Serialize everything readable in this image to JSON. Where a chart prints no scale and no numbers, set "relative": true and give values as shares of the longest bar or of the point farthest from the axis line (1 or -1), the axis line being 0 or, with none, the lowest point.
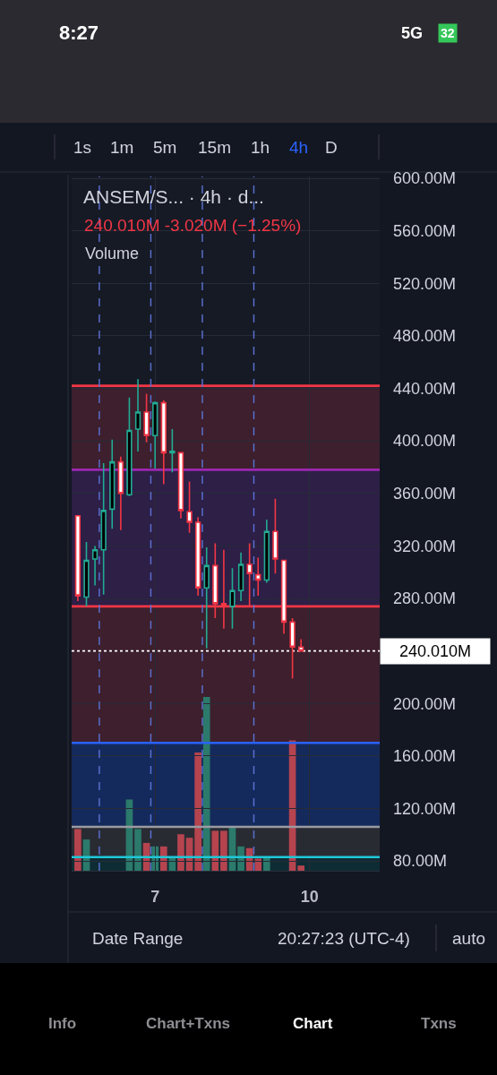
{
  "chart_data": [
    {
      "type": "candlestick",
      "title": "ANSEM/S... · 4h · d...",
      "subtitle": "240.010M -3.020M (−1.25%)",
      "x": [
        5.5,
        5.6667,
        5.8333,
        6,
        6.1667,
        6.3333,
        6.5,
        6.6667,
        6.8333,
        7,
        7.1667,
        7.3333,
        7.5,
        7.6667,
        7.8333,
        8,
        8.1667,
        8.3333,
        8.5,
        8.6667,
        8.8333,
        9,
        9.1667,
        9.3333,
        9.5,
        9.6667,
        9.8333
      ],
      "ohlc": [
        [
          343,
          343,
          278,
          282
        ],
        [
          281,
          323,
          274,
          309
        ],
        [
          310,
          320,
          290,
          317
        ],
        [
          317,
          383,
          283,
          347
        ],
        [
          348,
          401,
          333,
          384
        ],
        [
          384,
          388,
          332,
          360
        ],
        [
          359,
          433,
          358,
          408
        ],
        [
          409,
          447,
          392,
          422
        ],
        [
          422,
          436,
          399,
          404
        ],
        [
          404,
          430,
          379,
          429
        ],
        [
          429,
          431,
          367,
          391
        ],
        [
          391,
          409,
          376,
          392
        ],
        [
          391,
          391,
          341,
          347
        ],
        [
          346,
          369,
          330,
          338
        ],
        [
          338,
          342,
          282,
          288
        ],
        [
          288,
          319,
          242,
          305
        ],
        [
          305,
          322,
          265,
          276
        ],
        [
          276,
          317,
          257,
          275
        ],
        [
          274,
          303,
          257,
          286
        ],
        [
          286,
          315,
          278,
          306
        ],
        [
          306,
          322,
          274,
          299
        ],
        [
          298,
          311,
          282,
          294
        ],
        [
          294,
          340,
          292,
          331
        ],
        [
          331,
          356,
          299,
          310
        ],
        [
          309,
          309,
          253,
          262
        ],
        [
          262,
          265,
          219,
          243.03
        ],
        [
          243.03,
          249,
          240.01,
          240.01
        ]
      ],
      "xlim": [
        5.38,
        11.36
      ],
      "xticks": [
        7,
        10
      ],
      "ylim": [
        72.6,
        601.4
      ],
      "yticks": [
        {
          "value": 80,
          "label": "80.00M"
        },
        {
          "value": 120,
          "label": "120.00M"
        },
        {
          "value": 160,
          "label": "160.00M"
        },
        {
          "value": 200,
          "label": "200.00M"
        },
        {
          "value": 280,
          "label": "280.00M"
        },
        {
          "value": 320,
          "label": "320.00M"
        },
        {
          "value": 360,
          "label": "360.00M"
        },
        {
          "value": 400,
          "label": "400.00M"
        },
        {
          "value": 440,
          "label": "440.00M"
        },
        {
          "value": 480,
          "label": "480.00M"
        },
        {
          "value": 520,
          "label": "520.00M"
        },
        {
          "value": 560,
          "label": "560.00M"
        },
        {
          "value": 600,
          "label": "600.00M"
        }
      ],
      "grid": true,
      "bands": [
        {
          "axis": "y",
          "from": 378,
          "to": 442,
          "color": "#3d1f2d"
        },
        {
          "axis": "y",
          "from": 274,
          "to": 378,
          "color": "#2d1f46"
        },
        {
          "axis": "y",
          "from": 170,
          "to": 274,
          "color": "#3d1f2d"
        },
        {
          "axis": "y",
          "from": 106,
          "to": 170,
          "color": "#152a5c"
        },
        {
          "axis": "y",
          "from": 83,
          "to": 106,
          "color": "#292b33"
        },
        {
          "axis": "y",
          "from": 72.6,
          "to": 83,
          "color": "#0e2c34"
        }
      ],
      "ref_lines": [
        {
          "axis": "y",
          "value": 442,
          "color": "#f23645"
        },
        {
          "axis": "y",
          "value": 378,
          "color": "#9c27b0"
        },
        {
          "axis": "y",
          "value": 274,
          "color": "#f23645"
        },
        {
          "axis": "y",
          "value": 170,
          "color": "#2962ff"
        },
        {
          "axis": "y",
          "value": 106,
          "color": "#9a9aa2"
        },
        {
          "axis": "y",
          "value": 83,
          "color": "#1ec8d8"
        },
        {
          "axis": "y",
          "value": 240.01,
          "label": "240.010M",
          "color": "#ffffff",
          "line_style": "dotted"
        },
        {
          "axis": "x",
          "value": 5.917,
          "color": "#5b73d6",
          "line_style": "dashed"
        },
        {
          "axis": "x",
          "value": 6.917,
          "color": "#5b73d6",
          "line_style": "dashed"
        },
        {
          "axis": "x",
          "value": 7.917,
          "color": "#5b73d6",
          "line_style": "dashed"
        },
        {
          "axis": "x",
          "value": 8.917,
          "color": "#5b73d6",
          "line_style": "dashed"
        }
      ],
      "annotations": [
        "8:27",
        "5G",
        "32",
        "1s",
        "1m",
        "5m",
        "15m",
        "1h",
        "4h",
        "D",
        "Date Range",
        "20:27:23 (UTC-4)",
        "auto",
        "Info",
        "Chart+Txns",
        "Chart",
        "Txns"
      ]
    },
    {
      "type": "bar",
      "title": "Volume",
      "relative": true,
      "tick_labels": false,
      "x": [
        5.5,
        5.6667,
        5.8333,
        6,
        6.1667,
        6.3333,
        6.5,
        6.6667,
        6.8333,
        7,
        7.1667,
        7.3333,
        7.5,
        7.6667,
        7.8333,
        8,
        8.1667,
        8.3333,
        8.5,
        8.6667,
        8.8333,
        9,
        9.1667,
        9.3333,
        9.5,
        9.6667,
        9.8333
      ],
      "xlim": [
        5.38,
        11.36
      ],
      "values": [
        0.24,
        0.18,
        null,
        null,
        null,
        null,
        0.41,
        0.24,
        0.16,
        0.14,
        0.14,
        0.08,
        0.21,
        0.19,
        0.68,
        1,
        0.23,
        0.23,
        0.25,
        0.14,
        0.13,
        0.07,
        0.08,
        null,
        null,
        0.75,
        0.03
      ],
      "colors": [
        "#b5444f",
        "#2b7a6b",
        "#2b7a6b",
        "#2b7a6b",
        "#2b7a6b",
        "#b5444f",
        "#2b7a6b",
        "#2b7a6b",
        "#b5444f",
        "#2b7a6b",
        "#b5444f",
        "#2b7a6b",
        "#b5444f",
        "#b5444f",
        "#b5444f",
        "#2b7a6b",
        "#b5444f",
        "#b5444f",
        "#2b7a6b",
        "#2b7a6b",
        "#b5444f",
        "#b5444f",
        "#2b7a6b",
        "#b5444f",
        "#b5444f",
        "#b5444f",
        "#b5444f"
      ]
    }
  ]
}
